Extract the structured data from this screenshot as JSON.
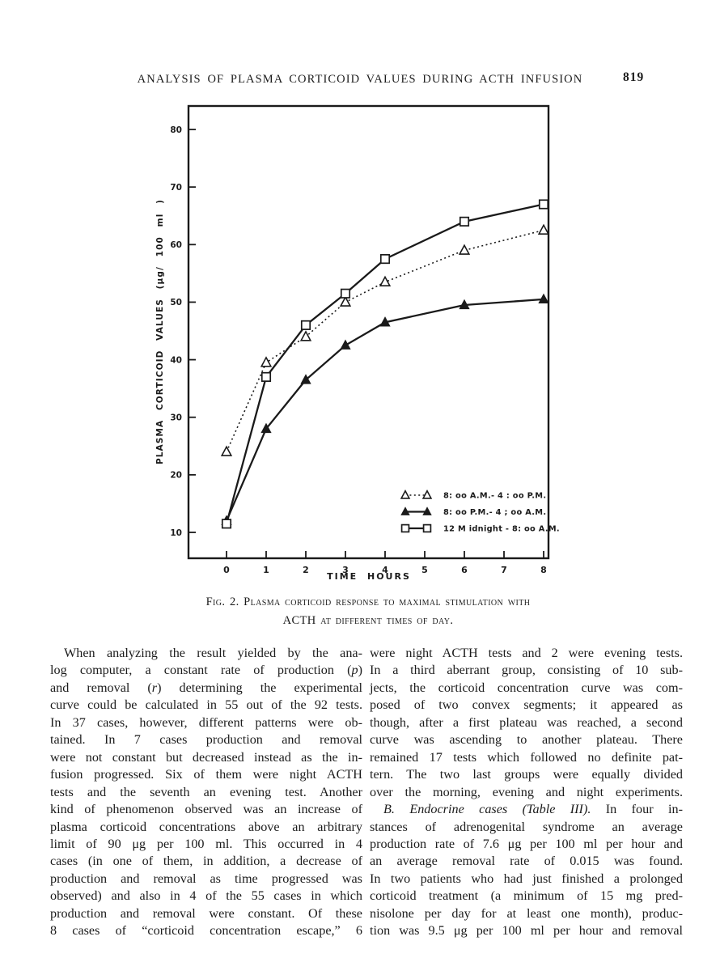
{
  "header": {
    "title": "ANALYSIS OF PLASMA CORTICOID VALUES DURING ACTH INFUSION",
    "page_number": "819"
  },
  "figure": {
    "caption_line1": "Fig. 2.  Plasma corticoid response to maximal stimulation with",
    "caption_line2": "ACTH at different times of day."
  },
  "chart_data": {
    "type": "line",
    "title": "",
    "xlabel": "TIME HOURS",
    "ylabel": "PLASMA CORTICOID VALUES (μg/ 100 ml )",
    "xticks": [
      0,
      1,
      2,
      3,
      4,
      5,
      6,
      7,
      8
    ],
    "yticks": [
      10,
      20,
      30,
      40,
      50,
      60,
      70,
      80
    ],
    "xlim": [
      -1,
      8.1
    ],
    "ylim": [
      5,
      84
    ],
    "grid": false,
    "legend_position": "inside lower right",
    "x": [
      0,
      1,
      2,
      3,
      4,
      6,
      8
    ],
    "series": [
      {
        "name": "8: oo A.M.- 4 : oo P.M.",
        "marker": "triangle-open",
        "line": "dotted",
        "values": [
          24,
          39.5,
          44,
          50,
          53.5,
          59,
          62.5
        ]
      },
      {
        "name": "8: oo P.M.- 4 ; oo A.M.",
        "marker": "triangle-filled",
        "line": "solid",
        "values": [
          12,
          28,
          36.5,
          42.5,
          46.5,
          49.5,
          50.5
        ]
      },
      {
        "name": "12 M idnight - 8: oo A.M.",
        "marker": "square-open",
        "line": "solid",
        "values": [
          11.5,
          37,
          46,
          51.5,
          57.5,
          64,
          67
        ]
      }
    ]
  },
  "body": {
    "columns": [
      {
        "lines": [
          {
            "indent": true,
            "text": "When analyzing the result yielded by the ana-"
          },
          {
            "parts": [
              {
                "t": "log computer, a constant rate of production ("
              },
              {
                "t": "p",
                "i": true
              },
              {
                "t": ")"
              }
            ]
          },
          {
            "parts": [
              {
                "t": "and removal ("
              },
              {
                "t": "r",
                "i": true
              },
              {
                "t": ") determining the experimental"
              }
            ]
          },
          "curve could be calculated in 55 out of the 92 tests.",
          "In 37 cases, however, different patterns were ob-",
          "tained.  In 7 cases production and removal",
          "were not constant but decreased instead as the in-",
          "fusion progressed.  Six of them were night ACTH",
          "tests and the seventh an evening test.  Another",
          "kind of phenomenon observed was an increase of",
          "plasma corticoid concentrations above an arbitrary",
          "limit of 90 μg per 100 ml.  This occurred in 4",
          "cases (in one of them, in addition, a decrease of",
          "production and removal as time progressed was",
          "observed) and also in 4 of the 55 cases in which",
          "production and removal were constant.  Of these",
          "8 cases of “corticoid concentration escape,” 6"
        ]
      },
      {
        "lines": [
          "were night ACTH tests and 2 were evening tests.",
          "In a third aberrant group, consisting of 10 sub-",
          "jects, the corticoid concentration curve was com-",
          "posed of two convex segments; it appeared as",
          "though, after a first plateau was reached, a second",
          "curve was ascending to another plateau.  There",
          "remained 17 tests which followed no definite pat-",
          "tern.  The two last groups were equally divided",
          "over the morning, evening and night experiments.",
          {
            "indent": true,
            "parts": [
              {
                "t": "B. Endocrine cases (Table III).",
                "i": true
              },
              {
                "t": "  In four in-"
              }
            ]
          },
          "stances of adrenogenital syndrome an average",
          "production rate of 7.6 μg per 100 ml per hour and",
          "an average removal rate of 0.015 was found.",
          "In two patients who had just finished a prolonged",
          "corticoid treatment (a minimum of 15 mg pred-",
          "nisolone per day for at least one month), produc-",
          "tion was 9.5 μg per 100 ml per hour and removal"
        ]
      }
    ]
  },
  "colors": {
    "ink": "#1a1a1a",
    "paper": "#ffffff"
  }
}
